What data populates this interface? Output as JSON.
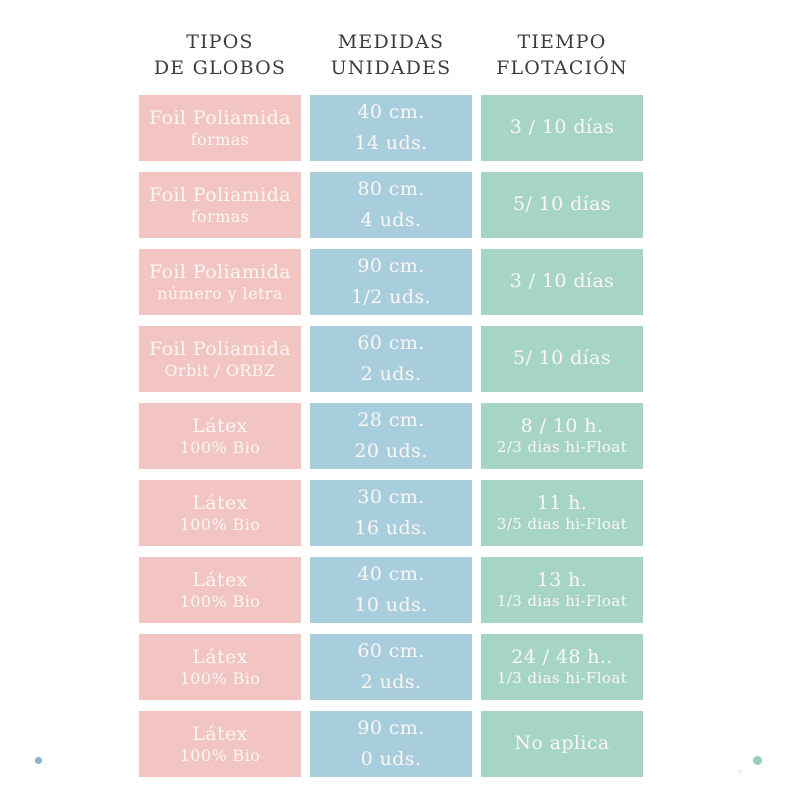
{
  "palette": {
    "pink_cell": "#f2c5c3",
    "blue_cell": "#a8cedd",
    "green_cell": "#a6d5c6",
    "cell_text": "#fcf6f3",
    "header_text": "#3d3d3d",
    "left_dot": "#87b4cc",
    "right_dot": "#95cbc0"
  },
  "headers": [
    {
      "line1": "TIPOS",
      "line2": "DE GLOBOS"
    },
    {
      "line1": "MEDIDAS",
      "line2": "UNIDADES"
    },
    {
      "line1": "TIEMPO",
      "line2": "FLOTACIÓN"
    }
  ],
  "rows": [
    {
      "tipo1": "Foil Poliamida",
      "tipo2": "formas",
      "medida1": "40 cm.",
      "medida2": "14 uds.",
      "tiempo1": "3 / 10 días",
      "tiempo2": ""
    },
    {
      "tipo1": "Foil Poliamida",
      "tipo2": "formas",
      "medida1": "80 cm.",
      "medida2": "4 uds.",
      "tiempo1": "5/ 10 días",
      "tiempo2": ""
    },
    {
      "tipo1": "Foil Poliamida",
      "tipo2": "número y letra",
      "medida1": "90 cm.",
      "medida2": "1/2 uds.",
      "tiempo1": "3 / 10 días",
      "tiempo2": ""
    },
    {
      "tipo1": "Foil Poliamida",
      "tipo2": "Orbit / ORBZ",
      "medida1": "60 cm.",
      "medida2": "2 uds.",
      "tiempo1": "5/ 10 días",
      "tiempo2": ""
    },
    {
      "tipo1": "Látex",
      "tipo2": "100% Bio",
      "medida1": "28 cm.",
      "medida2": "20 uds.",
      "tiempo1": "8 / 10 h.",
      "tiempo2": "2/3 dias hi-Float"
    },
    {
      "tipo1": "Látex",
      "tipo2": "100% Bio",
      "medida1": "30 cm.",
      "medida2": "16 uds.",
      "tiempo1": "11 h.",
      "tiempo2": "3/5 dias hi-Float"
    },
    {
      "tipo1": "Látex",
      "tipo2": "100% Bio",
      "medida1": "40 cm.",
      "medida2": "10 uds.",
      "tiempo1": "13 h.",
      "tiempo2": "1/3 dias hi-Float"
    },
    {
      "tipo1": "Látex",
      "tipo2": "100% Bio",
      "medida1": "60 cm.",
      "medida2": "2 uds.",
      "tiempo1": "24 / 48 h..",
      "tiempo2": "1/3 dias hi-Float"
    },
    {
      "tipo1": "Látex",
      "tipo2": "100% Bio",
      "medida1": "90 cm.",
      "medida2": "0 uds.",
      "tiempo1": "No aplica",
      "tiempo2": ""
    }
  ],
  "chart_data": {
    "type": "table",
    "columns": [
      "TIPOS DE GLOBOS",
      "MEDIDAS UNIDADES",
      "TIEMPO FLOTACIÓN"
    ],
    "rows": [
      [
        "Foil Poliamida formas",
        "40 cm. / 14 uds.",
        "3 / 10 días"
      ],
      [
        "Foil Poliamida formas",
        "80 cm. / 4 uds.",
        "5/ 10 días"
      ],
      [
        "Foil Poliamida número y letra",
        "90 cm. / 1/2 uds.",
        "3 / 10 días"
      ],
      [
        "Foil Poliamida Orbit / ORBZ",
        "60 cm. / 2 uds.",
        "5/ 10 días"
      ],
      [
        "Látex 100% Bio",
        "28 cm. / 20 uds.",
        "8 / 10 h. 2/3 dias hi-Float"
      ],
      [
        "Látex 100% Bio",
        "30 cm. / 16 uds.",
        "11 h. 3/5 dias hi-Float"
      ],
      [
        "Látex 100% Bio",
        "40 cm. / 10 uds.",
        "13 h. 1/3 dias hi-Float"
      ],
      [
        "Látex 100% Bio",
        "60 cm. / 2 uds.",
        "24 / 48 h.. 1/3 dias hi-Float"
      ],
      [
        "Látex 100% Bio",
        "90 cm. / 0 uds.",
        "No aplica"
      ]
    ]
  }
}
